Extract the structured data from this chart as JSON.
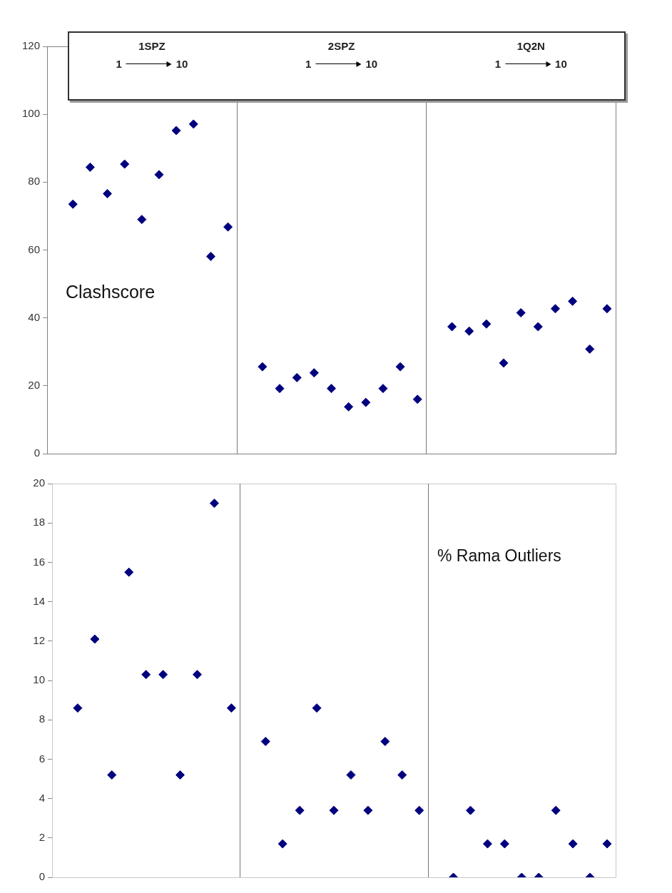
{
  "chart_data": [
    {
      "type": "scatter",
      "categories": [
        null,
        null,
        null,
        null,
        null,
        null,
        null,
        null,
        null,
        null,
        null,
        null,
        null,
        null,
        null,
        null,
        null,
        null,
        null,
        null,
        null,
        null,
        null,
        null,
        null,
        null,
        null,
        null,
        null,
        null,
        null,
        null,
        null
      ],
      "series": [
        {
          "color": "#00007f",
          "values": [
            null,
            73.5,
            84.4,
            76.6,
            85.3,
            69.0,
            82.2,
            95.2,
            97.1,
            58.1,
            66.8,
            null,
            25.6,
            19.2,
            22.4,
            23.8,
            19.2,
            13.8,
            15.1,
            19.2,
            25.6,
            16.0,
            null,
            37.4,
            36.1,
            38.2,
            26.7,
            41.5,
            37.4,
            42.7,
            44.9,
            30.8,
            42.7
          ]
        }
      ],
      "ylim": [
        0,
        120
      ],
      "yticks": [
        0,
        20,
        40,
        60,
        80,
        100,
        120
      ],
      "grid": false,
      "marker": "diamond",
      "tick_labels": "y",
      "annotations": [
        "1SPZ",
        "1",
        "10",
        "2SPZ",
        "1",
        "10",
        "1Q2N",
        "1",
        "10",
        "Clashscore"
      ]
    },
    {
      "type": "scatter",
      "categories": [
        null,
        null,
        null,
        null,
        null,
        null,
        null,
        null,
        null,
        null,
        null,
        null,
        null,
        null,
        null,
        null,
        null,
        null,
        null,
        null,
        null,
        null,
        null,
        null,
        null,
        null,
        null,
        null,
        null,
        null,
        null,
        null,
        null
      ],
      "series": [
        {
          "color": "#00007f",
          "values": [
            null,
            8.6,
            12.1,
            5.2,
            15.5,
            10.3,
            10.3,
            5.2,
            10.3,
            19.0,
            8.6,
            null,
            6.9,
            1.7,
            3.4,
            8.6,
            3.4,
            5.2,
            3.4,
            6.9,
            5.2,
            3.4,
            null,
            0,
            3.4,
            1.7,
            1.7,
            0,
            0,
            3.4,
            1.7,
            0,
            1.7
          ]
        }
      ],
      "ylim": [
        0,
        20
      ],
      "yticks": [
        0,
        2,
        4,
        6,
        8,
        10,
        12,
        14,
        16,
        18,
        20
      ],
      "grid": false,
      "marker": "diamond",
      "tick_labels": "y",
      "annotations": [
        "% Rama Outliers"
      ]
    }
  ]
}
